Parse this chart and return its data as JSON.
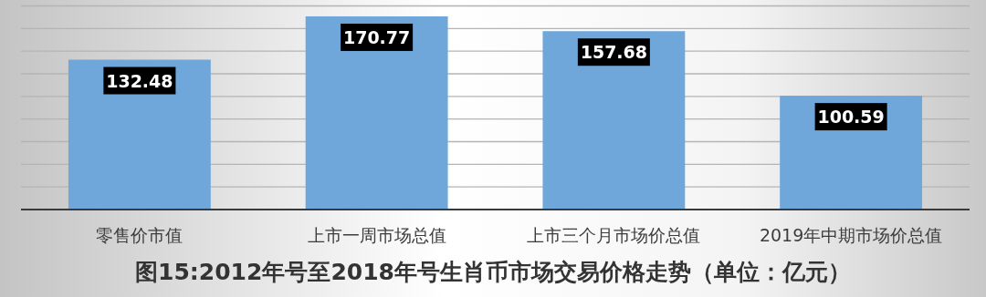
{
  "chart_data": {
    "type": "bar",
    "title": "图15:2012年号至2018年号生肖币市场交易价格走势（单位：亿元）",
    "categories": [
      "零售价市值",
      "上市一周市场总值",
      "上市三个月市场价总值",
      "2019年中期市场价总值"
    ],
    "values": [
      132.48,
      170.77,
      157.68,
      100.59
    ],
    "color": "#6fa7da",
    "ylim": [
      0,
      180
    ],
    "yticks": [
      {
        "value": 0,
        "label": null
      },
      {
        "value": 20,
        "label": null
      },
      {
        "value": 40,
        "label": null
      },
      {
        "value": 60,
        "label": null
      },
      {
        "value": 80,
        "label": null
      },
      {
        "value": 100,
        "label": null
      },
      {
        "value": 120,
        "label": null
      },
      {
        "value": 140,
        "label": null
      },
      {
        "value": 160,
        "label": null
      },
      {
        "value": 180,
        "label": null
      }
    ],
    "grid": "y",
    "data_labels": true
  }
}
